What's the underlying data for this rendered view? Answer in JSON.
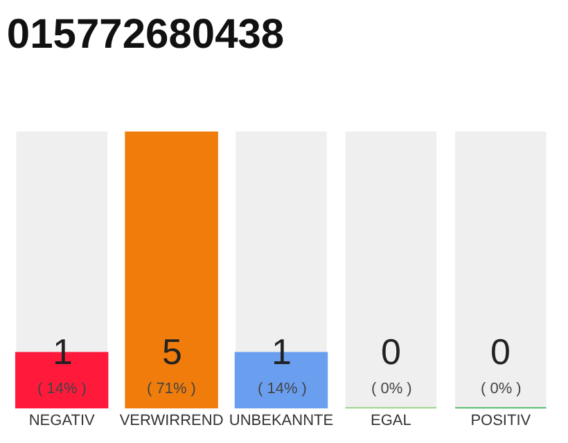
{
  "chart_data": {
    "type": "bar",
    "title": "015772680438",
    "categories": [
      "NEGATIV",
      "VERWIRREND",
      "UNBEKANNTE",
      "EGAL",
      "POSITIV"
    ],
    "values": [
      1,
      5,
      1,
      0,
      0
    ],
    "colors": [
      "#ff1a3c",
      "#f07c0c",
      "#6a9ff0",
      "#7dcc6a",
      "#22aa44"
    ],
    "data_labels": true,
    "annotations": [
      {
        "text": "( 14% )",
        "x": "NEGATIV",
        "y": 0
      },
      {
        "text": "( 71% )",
        "x": "VERWIRREND",
        "y": 0
      },
      {
        "text": "( 14% )",
        "x": "UNBEKANNTE",
        "y": 0
      },
      {
        "text": "( 0% )",
        "x": "EGAL",
        "y": 0
      },
      {
        "text": "( 0% )",
        "x": "POSITIV",
        "y": 0
      }
    ],
    "ylim": [
      0,
      5
    ],
    "tick_labels": "x",
    "grid": false,
    "legend": false
  }
}
